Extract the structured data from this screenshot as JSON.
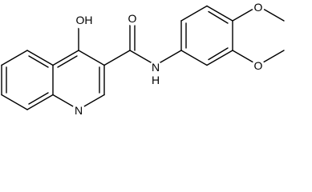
{
  "atoms": [
    {
      "label": "OH"
    },
    {
      "label": "O"
    },
    {
      "label": "N"
    },
    {
      "label": "H"
    },
    {
      "label": "N"
    },
    {
      "label": "O"
    },
    {
      "label": "O"
    }
  ]
}
